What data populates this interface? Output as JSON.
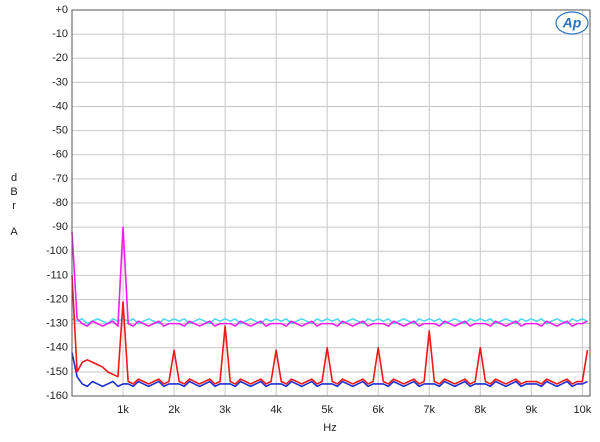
{
  "chart_data": {
    "type": "line",
    "logo": "Ap",
    "xlabel": "Hz",
    "ylabel": "dBr",
    "ylabel_unit": "A",
    "xlim": [
      0,
      10150
    ],
    "ylim": [
      -160,
      0
    ],
    "grid": true,
    "yticks": [
      {
        "value": 0,
        "label": "+0"
      },
      -10,
      -20,
      -30,
      -40,
      -50,
      -60,
      -70,
      -80,
      -90,
      -100,
      -110,
      -120,
      -130,
      -140,
      -150,
      -160
    ],
    "xticks": [
      {
        "value": 1000,
        "label": "1k"
      },
      {
        "value": 2000,
        "label": "2k"
      },
      {
        "value": 3000,
        "label": "3k"
      },
      {
        "value": 4000,
        "label": "4k"
      },
      {
        "value": 5000,
        "label": "5k"
      },
      {
        "value": 6000,
        "label": "6k"
      },
      {
        "value": 7000,
        "label": "7k"
      },
      {
        "value": 8000,
        "label": "8k"
      },
      {
        "value": 9000,
        "label": "9k"
      },
      {
        "value": 10000,
        "label": "10k"
      }
    ],
    "x": [
      0,
      100,
      200,
      300,
      400,
      500,
      600,
      700,
      800,
      900,
      1000,
      1100,
      1200,
      1300,
      1400,
      1500,
      1600,
      1700,
      1800,
      1900,
      2000,
      2100,
      2200,
      2300,
      2400,
      2500,
      2600,
      2700,
      2800,
      2900,
      3000,
      3100,
      3200,
      3300,
      3400,
      3500,
      3600,
      3700,
      3800,
      3900,
      4000,
      4100,
      4200,
      4300,
      4400,
      4500,
      4600,
      4700,
      4800,
      4900,
      5000,
      5100,
      5200,
      5300,
      5400,
      5500,
      5600,
      5700,
      5800,
      5900,
      6000,
      6100,
      6200,
      6300,
      6400,
      6500,
      6600,
      6700,
      6800,
      6900,
      7000,
      7100,
      7200,
      7300,
      7400,
      7500,
      7600,
      7700,
      7800,
      7900,
      8000,
      8100,
      8200,
      8300,
      8400,
      8500,
      8600,
      8700,
      8800,
      8900,
      9000,
      9100,
      9200,
      9300,
      9400,
      9500,
      9600,
      9700,
      9800,
      9900,
      10000,
      10100
    ],
    "series": [
      {
        "color": "#4fd6ee",
        "values": [
          -128,
          -129,
          -128,
          -130,
          -129,
          -128,
          -129,
          -130,
          -128,
          -129,
          -128,
          -129,
          -128,
          -130,
          -129,
          -128,
          -129,
          -130,
          -128,
          -129,
          -128,
          -129,
          -128,
          -130,
          -129,
          -128,
          -129,
          -130,
          -128,
          -129,
          -128,
          -129,
          -128,
          -130,
          -129,
          -128,
          -129,
          -130,
          -128,
          -129,
          -128,
          -129,
          -128,
          -130,
          -129,
          -128,
          -129,
          -130,
          -128,
          -129,
          -128,
          -129,
          -128,
          -130,
          -129,
          -128,
          -129,
          -130,
          -128,
          -129,
          -128,
          -129,
          -128,
          -130,
          -129,
          -128,
          -129,
          -130,
          -128,
          -129,
          -128,
          -129,
          -128,
          -130,
          -129,
          -128,
          -129,
          -130,
          -128,
          -129,
          -128,
          -129,
          -128,
          -130,
          -129,
          -128,
          -129,
          -130,
          -128,
          -129,
          -128,
          -129,
          -128,
          -130,
          -129,
          -128,
          -129,
          -130,
          -128,
          -129,
          -128,
          -129
        ]
      },
      {
        "color": "#f01ef0",
        "values": [
          -92,
          -128,
          -130,
          -131,
          -129,
          -130,
          -131,
          -130,
          -129,
          -131,
          -90,
          -130,
          -131,
          -129,
          -130,
          -131,
          -130,
          -129,
          -131,
          -130,
          -130,
          -130,
          -131,
          -129,
          -130,
          -131,
          -130,
          -129,
          -131,
          -130,
          -130,
          -130,
          -131,
          -129,
          -130,
          -131,
          -130,
          -129,
          -131,
          -130,
          -130,
          -130,
          -131,
          -129,
          -130,
          -131,
          -130,
          -129,
          -131,
          -130,
          -130,
          -130,
          -131,
          -129,
          -130,
          -131,
          -130,
          -129,
          -131,
          -130,
          -130,
          -130,
          -131,
          -129,
          -130,
          -131,
          -130,
          -129,
          -131,
          -130,
          -130,
          -130,
          -131,
          -129,
          -130,
          -131,
          -130,
          -129,
          -131,
          -130,
          -130,
          -130,
          -131,
          -129,
          -130,
          -131,
          -130,
          -129,
          -131,
          -130,
          -130,
          -130,
          -131,
          -129,
          -130,
          -131,
          -130,
          -129,
          -131,
          -130,
          -130,
          -129
        ]
      },
      {
        "color": "#1c2fd0",
        "values": [
          -142,
          -152,
          -155,
          -156,
          -154,
          -155,
          -156,
          -155,
          -154,
          -156,
          -155,
          -155,
          -156,
          -154,
          -155,
          -156,
          -155,
          -154,
          -156,
          -155,
          -155,
          -155,
          -156,
          -154,
          -155,
          -156,
          -155,
          -154,
          -156,
          -155,
          -155,
          -155,
          -156,
          -154,
          -155,
          -156,
          -155,
          -154,
          -156,
          -155,
          -155,
          -155,
          -156,
          -154,
          -155,
          -156,
          -155,
          -154,
          -156,
          -155,
          -155,
          -155,
          -156,
          -154,
          -155,
          -156,
          -155,
          -154,
          -156,
          -155,
          -155,
          -155,
          -156,
          -154,
          -155,
          -156,
          -155,
          -154,
          -156,
          -155,
          -155,
          -155,
          -156,
          -154,
          -155,
          -156,
          -155,
          -154,
          -156,
          -155,
          -155,
          -155,
          -156,
          -154,
          -155,
          -156,
          -155,
          -154,
          -156,
          -155,
          -155,
          -155,
          -156,
          -154,
          -155,
          -156,
          -155,
          -154,
          -156,
          -155,
          -155,
          -154
        ]
      },
      {
        "color": "#f01818",
        "values": [
          -110,
          -150,
          -146,
          -145,
          -146,
          -147,
          -148,
          -150,
          -151,
          -152,
          -121,
          -154,
          -155,
          -153,
          -154,
          -155,
          -154,
          -153,
          -155,
          -154,
          -141,
          -154,
          -155,
          -153,
          -154,
          -155,
          -154,
          -153,
          -155,
          -154,
          -131,
          -154,
          -155,
          -153,
          -154,
          -155,
          -154,
          -153,
          -155,
          -154,
          -141,
          -154,
          -155,
          -153,
          -154,
          -155,
          -154,
          -153,
          -155,
          -154,
          -140,
          -154,
          -155,
          -153,
          -154,
          -155,
          -154,
          -153,
          -155,
          -154,
          -140,
          -154,
          -155,
          -153,
          -154,
          -155,
          -154,
          -153,
          -155,
          -154,
          -133,
          -154,
          -155,
          -153,
          -154,
          -155,
          -154,
          -153,
          -155,
          -154,
          -140,
          -154,
          -155,
          -153,
          -154,
          -155,
          -154,
          -153,
          -155,
          -154,
          -154,
          -154,
          -155,
          -153,
          -154,
          -155,
          -154,
          -153,
          -155,
          -154,
          -154,
          -141
        ]
      }
    ]
  }
}
